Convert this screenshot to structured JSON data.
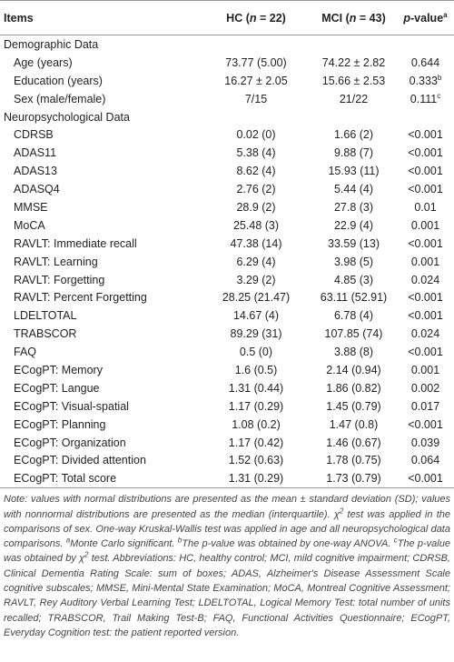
{
  "table": {
    "header": [
      [
        {
          "text": "Items"
        }
      ],
      [
        {
          "text": "HC ("
        },
        {
          "text": "n",
          "em": true
        },
        {
          "text": " = 22)"
        }
      ],
      [
        {
          "text": "MCI ("
        },
        {
          "text": "n",
          "em": true
        },
        {
          "text": " = 43)"
        }
      ],
      [
        {
          "text": "p",
          "em": true
        },
        {
          "text": "-value"
        },
        {
          "text": "a",
          "sup": true
        }
      ]
    ],
    "rows": [
      {
        "section": "Demographic Data"
      },
      {
        "cells": [
          "Age (years)",
          "73.77 (5.00)",
          "74.22 ± 2.82",
          "0.644"
        ]
      },
      {
        "cells": [
          "Education (years)",
          "16.27 ± 2.05",
          "15.66 ± 2.53",
          "0.333"
        ],
        "sup": "b"
      },
      {
        "cells": [
          "Sex (male/female)",
          "7/15",
          "21/22",
          "0.111"
        ],
        "sup": "c"
      },
      {
        "section": "Neuropsychological Data"
      },
      {
        "cells": [
          "CDRSB",
          "0.02 (0)",
          "1.66 (2)",
          "<0.001"
        ]
      },
      {
        "cells": [
          "ADAS11",
          "5.38 (4)",
          "9.88 (7)",
          "<0.001"
        ]
      },
      {
        "cells": [
          "ADAS13",
          "8.62 (4)",
          "15.93 (11)",
          "<0.001"
        ]
      },
      {
        "cells": [
          "ADASQ4",
          "2.76 (2)",
          "5.44 (4)",
          "<0.001"
        ]
      },
      {
        "cells": [
          "MMSE",
          "28.9 (2)",
          "27.8 (3)",
          "0.01"
        ]
      },
      {
        "cells": [
          "MoCA",
          "25.48 (3)",
          "22.9 (4)",
          "0.001"
        ]
      },
      {
        "cells": [
          "RAVLT: Immediate recall",
          "47.38 (14)",
          "33.59 (13)",
          "<0.001"
        ]
      },
      {
        "cells": [
          "RAVLT: Learning",
          "6.29 (4)",
          "3.98 (5)",
          "0.001"
        ]
      },
      {
        "cells": [
          "RAVLT: Forgetting",
          "3.29 (2)",
          "4.85 (3)",
          "0.024"
        ]
      },
      {
        "cells": [
          "RAVLT: Percent Forgetting",
          "28.25 (21.47)",
          "63.11 (52.91)",
          "<0.001"
        ]
      },
      {
        "cells": [
          "LDELTOTAL",
          "14.67 (4)",
          "6.78 (4)",
          "<0.001"
        ]
      },
      {
        "cells": [
          "TRABSCOR",
          "89.29 (31)",
          "107.85 (74)",
          "0.024"
        ]
      },
      {
        "cells": [
          "FAQ",
          "0.5 (0)",
          "3.88 (8)",
          "<0.001"
        ]
      },
      {
        "cells": [
          "ECogPT: Memory",
          "1.6 (0.5)",
          "2.14 (0.94)",
          "0.001"
        ]
      },
      {
        "cells": [
          "ECogPT: Langue",
          "1.31 (0.44)",
          "1.86 (0.82)",
          "0.002"
        ]
      },
      {
        "cells": [
          "ECogPT: Visual-spatial",
          "1.17 (0.29)",
          "1.45 (0.79)",
          "0.017"
        ]
      },
      {
        "cells": [
          "ECogPT: Planning",
          "1.08 (0.2)",
          "1.47 (0.8)",
          "<0.001"
        ]
      },
      {
        "cells": [
          "ECogPT: Organization",
          "1.17 (0.42)",
          "1.46 (0.67)",
          "0.039"
        ]
      },
      {
        "cells": [
          "ECogPT: Divided attention",
          "1.52 (0.63)",
          "1.78 (0.75)",
          "0.064"
        ]
      },
      {
        "cells": [
          "ECogPT: Total score",
          "1.31 (0.29)",
          "1.73 (0.79)",
          "<0.001"
        ]
      }
    ]
  },
  "note": [
    {
      "text": "Note: values with normal distributions are presented as the mean ± standard deviation (SD); values with nonnormal distributions are presented as the median (interquartile). χ"
    },
    {
      "text": "2",
      "sup": true
    },
    {
      "text": " test was applied in the comparisons of sex. One-way Kruskal-Wallis test was applied in age and all neuropsychological data comparisons. "
    },
    {
      "text": "a",
      "sup": true
    },
    {
      "text": "Monte Carlo significant. "
    },
    {
      "text": "b",
      "sup": true
    },
    {
      "text": "The p-value was obtained by one-way ANOVA. "
    },
    {
      "text": "c",
      "sup": true
    },
    {
      "text": "The p-value was obtained by χ"
    },
    {
      "text": "2",
      "sup": true
    },
    {
      "text": " test. Abbreviations: HC, healthy control; MCI, mild cognitive impairment; CDRSB, Clinical Dementia Rating Scale: sum of boxes; ADAS, Alzheimer's Disease Assessment Scale cognitive subscales; MMSE, Mini-Mental State Examination; MoCA, Montreal Cognitive Assessment; RAVLT, Rey Auditory Verbal Learning Test; LDELTOTAL, Logical Memory Test: total number of units recalled; TRABSCOR, Trail Making Test-B; FAQ, Functional Activities Questionnaire; ECogPT, Everyday Cognition test: the patient reported version."
    }
  ]
}
